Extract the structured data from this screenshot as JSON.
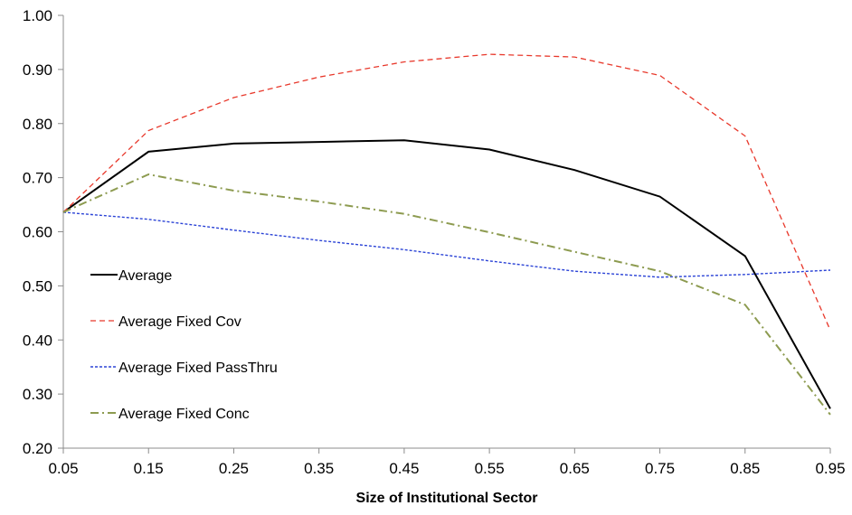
{
  "chart_data": {
    "type": "line",
    "title": "",
    "xlabel": "Size of Institutional Sector",
    "ylabel": "",
    "x": [
      "0.05",
      "0.15",
      "0.25",
      "0.35",
      "0.45",
      "0.55",
      "0.65",
      "0.75",
      "0.85",
      "0.95"
    ],
    "ylim": [
      0.2,
      1.0
    ],
    "yticks": [
      "0.20",
      "0.30",
      "0.40",
      "0.50",
      "0.60",
      "0.70",
      "0.80",
      "0.90",
      "1.00"
    ],
    "grid": false,
    "legend_position": "left",
    "series": [
      {
        "name": "Average",
        "color": "#000000",
        "style": "solid",
        "values": [
          0.636,
          0.748,
          0.763,
          0.766,
          0.769,
          0.752,
          0.714,
          0.665,
          0.555,
          0.273
        ]
      },
      {
        "name": "Average Fixed Cov",
        "color": "#e8382b",
        "style": "dashed",
        "values": [
          0.636,
          0.787,
          0.848,
          0.886,
          0.914,
          0.928,
          0.923,
          0.889,
          0.777,
          0.418
        ]
      },
      {
        "name": "Average Fixed PassThru",
        "color": "#2b43d6",
        "style": "dotted",
        "values": [
          0.636,
          0.623,
          0.603,
          0.584,
          0.567,
          0.546,
          0.527,
          0.516,
          0.521,
          0.529
        ]
      },
      {
        "name": "Average Fixed Conc",
        "color": "#8d9b50",
        "style": "dashdot",
        "values": [
          0.636,
          0.706,
          0.676,
          0.656,
          0.633,
          0.599,
          0.563,
          0.527,
          0.465,
          0.262
        ]
      }
    ]
  }
}
